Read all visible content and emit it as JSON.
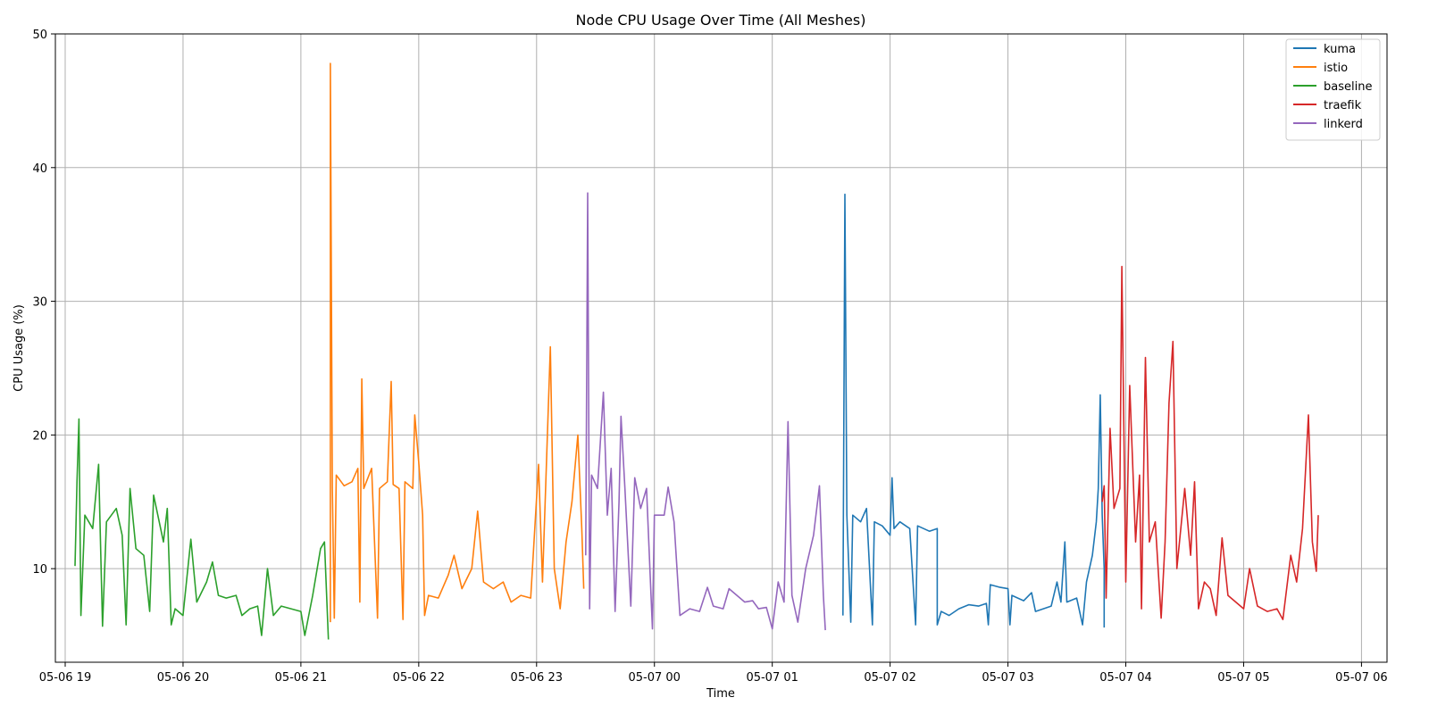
{
  "chart_data": {
    "type": "line",
    "title": "Node CPU Usage Over Time (All Meshes)",
    "xlabel": "Time",
    "ylabel": "CPU Usage (%)",
    "xlim": [
      "2024-05-06 18:55",
      "2024-05-07 06:13"
    ],
    "ylim": [
      3.0,
      50.0
    ],
    "x_ticks": [
      {
        "t": "2024-05-06 19:00",
        "label": "05-06 19"
      },
      {
        "t": "2024-05-06 20:00",
        "label": "05-06 20"
      },
      {
        "t": "2024-05-06 21:00",
        "label": "05-06 21"
      },
      {
        "t": "2024-05-06 22:00",
        "label": "05-06 22"
      },
      {
        "t": "2024-05-06 23:00",
        "label": "05-06 23"
      },
      {
        "t": "2024-05-07 00:00",
        "label": "05-07 00"
      },
      {
        "t": "2024-05-07 01:00",
        "label": "05-07 01"
      },
      {
        "t": "2024-05-07 02:00",
        "label": "05-07 02"
      },
      {
        "t": "2024-05-07 03:00",
        "label": "05-07 03"
      },
      {
        "t": "2024-05-07 04:00",
        "label": "05-07 04"
      },
      {
        "t": "2024-05-07 05:00",
        "label": "05-07 05"
      },
      {
        "t": "2024-05-07 06:00",
        "label": "05-07 06"
      }
    ],
    "y_ticks": [
      10,
      20,
      30,
      40,
      50
    ],
    "grid": true,
    "legend_position": "top-right",
    "series": [
      {
        "name": "kuma",
        "color": "#1f77b4",
        "points": [
          [
            "2024-05-07 01:36",
            6.5
          ],
          [
            "2024-05-07 01:37",
            38.0
          ],
          [
            "2024-05-07 01:38",
            14.0
          ],
          [
            "2024-05-07 01:40",
            6.0
          ],
          [
            "2024-05-07 01:41",
            14.0
          ],
          [
            "2024-05-07 01:45",
            13.5
          ],
          [
            "2024-05-07 01:48",
            14.5
          ],
          [
            "2024-05-07 01:51",
            5.8
          ],
          [
            "2024-05-07 01:52",
            13.5
          ],
          [
            "2024-05-07 01:56",
            13.2
          ],
          [
            "2024-05-07 02:00",
            12.5
          ],
          [
            "2024-05-07 02:01",
            16.8
          ],
          [
            "2024-05-07 02:02",
            13.0
          ],
          [
            "2024-05-07 02:05",
            13.5
          ],
          [
            "2024-05-07 02:10",
            13.0
          ],
          [
            "2024-05-07 02:13",
            5.8
          ],
          [
            "2024-05-07 02:14",
            13.2
          ],
          [
            "2024-05-07 02:20",
            12.8
          ],
          [
            "2024-05-07 02:24",
            13.0
          ],
          [
            "2024-05-07 02:24",
            5.8
          ],
          [
            "2024-05-07 02:26",
            6.8
          ],
          [
            "2024-05-07 02:30",
            6.5
          ],
          [
            "2024-05-07 02:35",
            7.0
          ],
          [
            "2024-05-07 02:40",
            7.3
          ],
          [
            "2024-05-07 02:45",
            7.2
          ],
          [
            "2024-05-07 02:49",
            7.4
          ],
          [
            "2024-05-07 02:50",
            5.8
          ],
          [
            "2024-05-07 02:51",
            8.8
          ],
          [
            "2024-05-07 02:56",
            8.6
          ],
          [
            "2024-05-07 03:00",
            8.5
          ],
          [
            "2024-05-07 03:01",
            5.8
          ],
          [
            "2024-05-07 03:02",
            8.0
          ],
          [
            "2024-05-07 03:08",
            7.6
          ],
          [
            "2024-05-07 03:12",
            8.2
          ],
          [
            "2024-05-07 03:14",
            6.8
          ],
          [
            "2024-05-07 03:18",
            7.0
          ],
          [
            "2024-05-07 03:22",
            7.2
          ],
          [
            "2024-05-07 03:25",
            9.0
          ],
          [
            "2024-05-07 03:27",
            7.5
          ],
          [
            "2024-05-07 03:29",
            12.0
          ],
          [
            "2024-05-07 03:30",
            7.5
          ],
          [
            "2024-05-07 03:35",
            7.8
          ],
          [
            "2024-05-07 03:38",
            5.8
          ],
          [
            "2024-05-07 03:40",
            9.0
          ],
          [
            "2024-05-07 03:43",
            11.0
          ],
          [
            "2024-05-07 03:45",
            13.5
          ],
          [
            "2024-05-07 03:46",
            16.0
          ],
          [
            "2024-05-07 03:47",
            23.0
          ],
          [
            "2024-05-07 03:48",
            14.0
          ],
          [
            "2024-05-07 03:49",
            10.0
          ],
          [
            "2024-05-07 03:49",
            5.6
          ]
        ]
      },
      {
        "name": "istio",
        "color": "#ff7f0e",
        "points": [
          [
            "2024-05-06 21:15",
            6.0
          ],
          [
            "2024-05-06 21:15",
            47.8
          ],
          [
            "2024-05-06 21:16",
            16.0
          ],
          [
            "2024-05-06 21:17",
            6.3
          ],
          [
            "2024-05-06 21:18",
            17.0
          ],
          [
            "2024-05-06 21:22",
            16.2
          ],
          [
            "2024-05-06 21:26",
            16.5
          ],
          [
            "2024-05-06 21:29",
            17.5
          ],
          [
            "2024-05-06 21:30",
            7.5
          ],
          [
            "2024-05-06 21:31",
            24.2
          ],
          [
            "2024-05-06 21:32",
            16.0
          ],
          [
            "2024-05-06 21:36",
            17.5
          ],
          [
            "2024-05-06 21:39",
            6.3
          ],
          [
            "2024-05-06 21:40",
            16.0
          ],
          [
            "2024-05-06 21:44",
            16.5
          ],
          [
            "2024-05-06 21:46",
            24.0
          ],
          [
            "2024-05-06 21:47",
            16.3
          ],
          [
            "2024-05-06 21:50",
            16.0
          ],
          [
            "2024-05-06 21:52",
            6.2
          ],
          [
            "2024-05-06 21:53",
            16.5
          ],
          [
            "2024-05-06 21:57",
            16.0
          ],
          [
            "2024-05-06 21:58",
            21.5
          ],
          [
            "2024-05-06 22:00",
            18.0
          ],
          [
            "2024-05-06 22:02",
            14.0
          ],
          [
            "2024-05-06 22:03",
            6.5
          ],
          [
            "2024-05-06 22:05",
            8.0
          ],
          [
            "2024-05-06 22:10",
            7.8
          ],
          [
            "2024-05-06 22:15",
            9.5
          ],
          [
            "2024-05-06 22:18",
            11.0
          ],
          [
            "2024-05-06 22:22",
            8.5
          ],
          [
            "2024-05-06 22:27",
            10.0
          ],
          [
            "2024-05-06 22:30",
            14.3
          ],
          [
            "2024-05-06 22:33",
            9.0
          ],
          [
            "2024-05-06 22:38",
            8.5
          ],
          [
            "2024-05-06 22:43",
            9.0
          ],
          [
            "2024-05-06 22:47",
            7.5
          ],
          [
            "2024-05-06 22:52",
            8.0
          ],
          [
            "2024-05-06 22:57",
            7.8
          ],
          [
            "2024-05-06 23:01",
            17.8
          ],
          [
            "2024-05-06 23:03",
            9.0
          ],
          [
            "2024-05-06 23:07",
            26.6
          ],
          [
            "2024-05-06 23:09",
            10.0
          ],
          [
            "2024-05-06 23:12",
            7.0
          ],
          [
            "2024-05-06 23:15",
            12.0
          ],
          [
            "2024-05-06 23:18",
            15.0
          ],
          [
            "2024-05-06 23:21",
            20.0
          ],
          [
            "2024-05-06 23:23",
            13.0
          ],
          [
            "2024-05-06 23:24",
            8.5
          ]
        ]
      },
      {
        "name": "baseline",
        "color": "#2ca02c",
        "points": [
          [
            "2024-05-06 19:05",
            10.2
          ],
          [
            "2024-05-06 19:06",
            16.5
          ],
          [
            "2024-05-06 19:07",
            21.2
          ],
          [
            "2024-05-06 19:08",
            6.5
          ],
          [
            "2024-05-06 19:10",
            14.0
          ],
          [
            "2024-05-06 19:14",
            13.0
          ],
          [
            "2024-05-06 19:17",
            17.8
          ],
          [
            "2024-05-06 19:19",
            5.7
          ],
          [
            "2024-05-06 19:21",
            13.5
          ],
          [
            "2024-05-06 19:26",
            14.5
          ],
          [
            "2024-05-06 19:29",
            12.5
          ],
          [
            "2024-05-06 19:31",
            5.8
          ],
          [
            "2024-05-06 19:33",
            16.0
          ],
          [
            "2024-05-06 19:36",
            11.5
          ],
          [
            "2024-05-06 19:40",
            11.0
          ],
          [
            "2024-05-06 19:43",
            6.8
          ],
          [
            "2024-05-06 19:45",
            15.5
          ],
          [
            "2024-05-06 19:50",
            12.0
          ],
          [
            "2024-05-06 19:52",
            14.5
          ],
          [
            "2024-05-06 19:54",
            5.8
          ],
          [
            "2024-05-06 19:56",
            7.0
          ],
          [
            "2024-05-06 20:00",
            6.5
          ],
          [
            "2024-05-06 20:04",
            12.2
          ],
          [
            "2024-05-06 20:07",
            7.5
          ],
          [
            "2024-05-06 20:12",
            9.0
          ],
          [
            "2024-05-06 20:15",
            10.5
          ],
          [
            "2024-05-06 20:18",
            8.0
          ],
          [
            "2024-05-06 20:22",
            7.8
          ],
          [
            "2024-05-06 20:27",
            8.0
          ],
          [
            "2024-05-06 20:30",
            6.5
          ],
          [
            "2024-05-06 20:34",
            7.0
          ],
          [
            "2024-05-06 20:38",
            7.2
          ],
          [
            "2024-05-06 20:40",
            5.0
          ],
          [
            "2024-05-06 20:43",
            10.0
          ],
          [
            "2024-05-06 20:46",
            6.5
          ],
          [
            "2024-05-06 20:50",
            7.2
          ],
          [
            "2024-05-06 20:55",
            7.0
          ],
          [
            "2024-05-06 21:00",
            6.8
          ],
          [
            "2024-05-06 21:02",
            5.0
          ],
          [
            "2024-05-06 21:06",
            8.0
          ],
          [
            "2024-05-06 21:10",
            11.5
          ],
          [
            "2024-05-06 21:12",
            12.0
          ],
          [
            "2024-05-06 21:14",
            4.7
          ]
        ]
      },
      {
        "name": "traefik",
        "color": "#d62728",
        "points": [
          [
            "2024-05-07 03:48",
            15.0
          ],
          [
            "2024-05-07 03:49",
            16.2
          ],
          [
            "2024-05-07 03:50",
            7.8
          ],
          [
            "2024-05-07 03:52",
            20.5
          ],
          [
            "2024-05-07 03:54",
            14.5
          ],
          [
            "2024-05-07 03:57",
            16.0
          ],
          [
            "2024-05-07 03:58",
            32.6
          ],
          [
            "2024-05-07 04:00",
            9.0
          ],
          [
            "2024-05-07 04:02",
            23.7
          ],
          [
            "2024-05-07 04:05",
            12.0
          ],
          [
            "2024-05-07 04:07",
            17.0
          ],
          [
            "2024-05-07 04:08",
            7.0
          ],
          [
            "2024-05-07 04:10",
            25.8
          ],
          [
            "2024-05-07 04:12",
            12.0
          ],
          [
            "2024-05-07 04:15",
            13.5
          ],
          [
            "2024-05-07 04:18",
            6.3
          ],
          [
            "2024-05-07 04:20",
            12.0
          ],
          [
            "2024-05-07 04:22",
            22.4
          ],
          [
            "2024-05-07 04:24",
            27.0
          ],
          [
            "2024-05-07 04:26",
            10.0
          ],
          [
            "2024-05-07 04:30",
            16.0
          ],
          [
            "2024-05-07 04:33",
            11.0
          ],
          [
            "2024-05-07 04:35",
            16.5
          ],
          [
            "2024-05-07 04:37",
            7.0
          ],
          [
            "2024-05-07 04:40",
            9.0
          ],
          [
            "2024-05-07 04:43",
            8.5
          ],
          [
            "2024-05-07 04:46",
            6.5
          ],
          [
            "2024-05-07 04:49",
            12.3
          ],
          [
            "2024-05-07 04:52",
            8.0
          ],
          [
            "2024-05-07 04:56",
            7.5
          ],
          [
            "2024-05-07 05:00",
            7.0
          ],
          [
            "2024-05-07 05:03",
            10.0
          ],
          [
            "2024-05-07 05:07",
            7.2
          ],
          [
            "2024-05-07 05:12",
            6.8
          ],
          [
            "2024-05-07 05:17",
            7.0
          ],
          [
            "2024-05-07 05:20",
            6.2
          ],
          [
            "2024-05-07 05:24",
            11.0
          ],
          [
            "2024-05-07 05:27",
            9.0
          ],
          [
            "2024-05-07 05:30",
            13.0
          ],
          [
            "2024-05-07 05:33",
            21.5
          ],
          [
            "2024-05-07 05:35",
            12.0
          ],
          [
            "2024-05-07 05:37",
            9.8
          ],
          [
            "2024-05-07 05:38",
            14.0
          ]
        ]
      },
      {
        "name": "linkerd",
        "color": "#9467bd",
        "points": [
          [
            "2024-05-06 23:25",
            11.0
          ],
          [
            "2024-05-06 23:26",
            38.1
          ],
          [
            "2024-05-06 23:27",
            7.0
          ],
          [
            "2024-05-06 23:28",
            17.0
          ],
          [
            "2024-05-06 23:31",
            16.0
          ],
          [
            "2024-05-06 23:34",
            23.2
          ],
          [
            "2024-05-06 23:36",
            14.0
          ],
          [
            "2024-05-06 23:38",
            17.5
          ],
          [
            "2024-05-06 23:40",
            6.8
          ],
          [
            "2024-05-06 23:42",
            15.0
          ],
          [
            "2024-05-06 23:43",
            21.4
          ],
          [
            "2024-05-06 23:45",
            16.0
          ],
          [
            "2024-05-06 23:48",
            7.2
          ],
          [
            "2024-05-06 23:50",
            16.8
          ],
          [
            "2024-05-06 23:53",
            14.5
          ],
          [
            "2024-05-06 23:56",
            16.0
          ],
          [
            "2024-05-06 23:59",
            5.5
          ],
          [
            "2024-05-07 00:00",
            14.0
          ],
          [
            "2024-05-07 00:05",
            14.0
          ],
          [
            "2024-05-07 00:07",
            16.1
          ],
          [
            "2024-05-07 00:10",
            13.5
          ],
          [
            "2024-05-07 00:13",
            6.5
          ],
          [
            "2024-05-07 00:18",
            7.0
          ],
          [
            "2024-05-07 00:23",
            6.8
          ],
          [
            "2024-05-07 00:27",
            8.6
          ],
          [
            "2024-05-07 00:30",
            7.2
          ],
          [
            "2024-05-07 00:35",
            7.0
          ],
          [
            "2024-05-07 00:38",
            8.5
          ],
          [
            "2024-05-07 00:42",
            8.0
          ],
          [
            "2024-05-07 00:46",
            7.5
          ],
          [
            "2024-05-07 00:50",
            7.6
          ],
          [
            "2024-05-07 00:53",
            7.0
          ],
          [
            "2024-05-07 00:57",
            7.1
          ],
          [
            "2024-05-07 01:00",
            5.5
          ],
          [
            "2024-05-07 01:03",
            9.0
          ],
          [
            "2024-05-07 01:06",
            7.5
          ],
          [
            "2024-05-07 01:08",
            21.0
          ],
          [
            "2024-05-07 01:10",
            8.0
          ],
          [
            "2024-05-07 01:13",
            6.0
          ],
          [
            "2024-05-07 01:17",
            10.0
          ],
          [
            "2024-05-07 01:21",
            12.5
          ],
          [
            "2024-05-07 01:24",
            16.2
          ],
          [
            "2024-05-07 01:26",
            8.0
          ],
          [
            "2024-05-07 01:27",
            5.4
          ]
        ]
      }
    ]
  }
}
